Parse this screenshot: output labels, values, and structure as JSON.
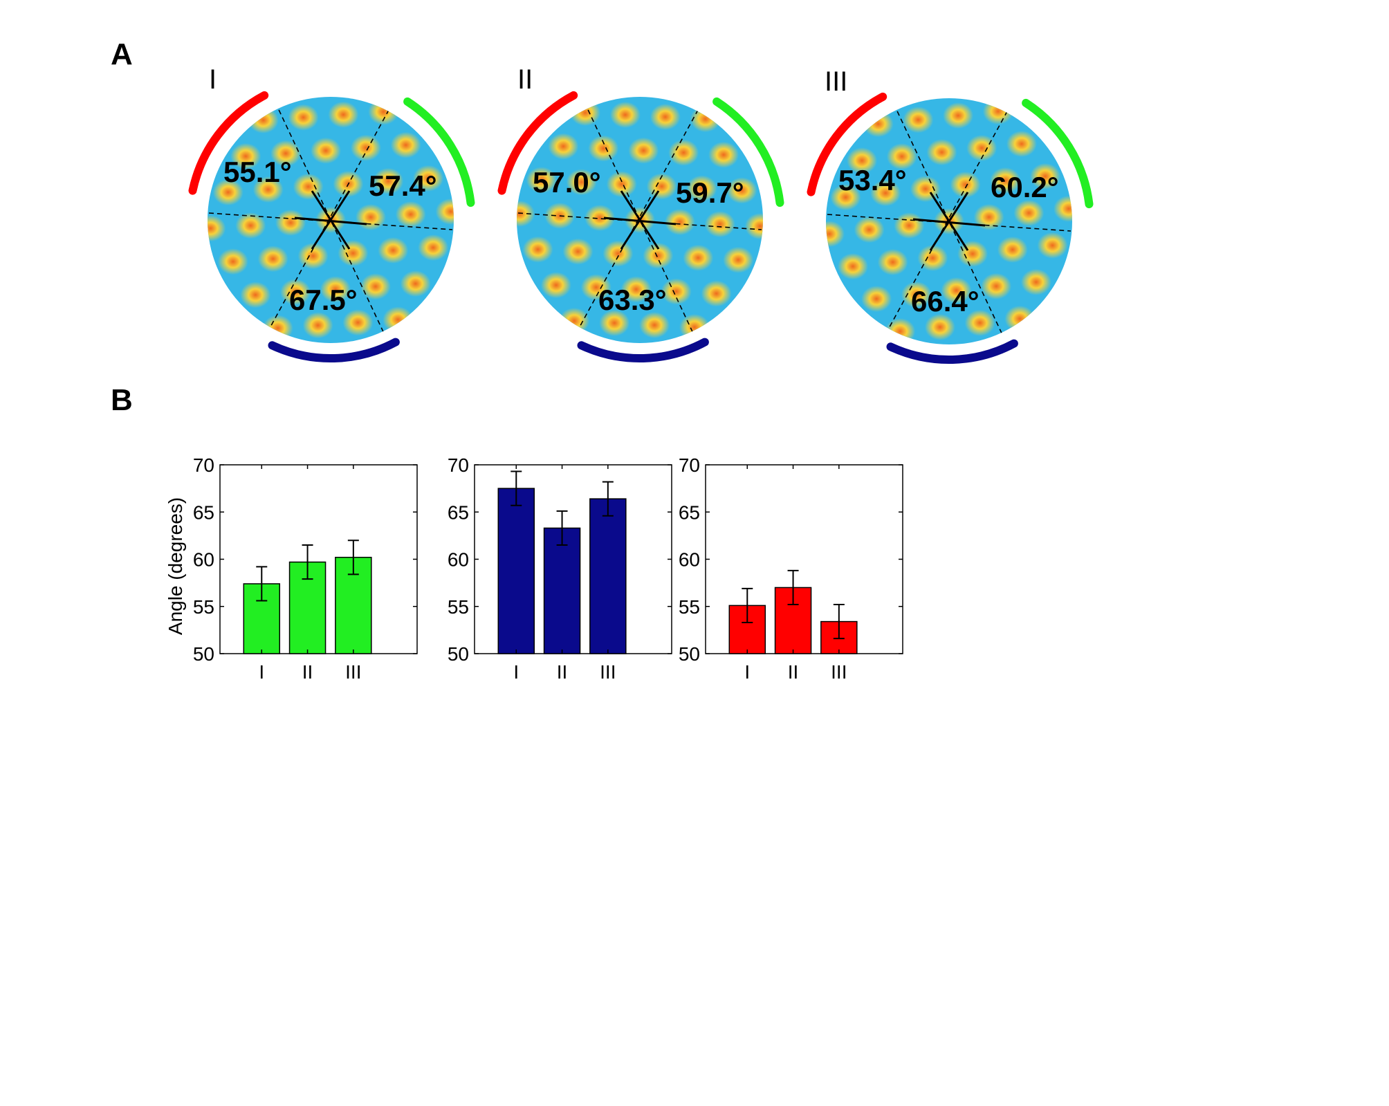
{
  "figure": {
    "panel_a_letter": "A",
    "panel_b_letter": "B"
  },
  "colors": {
    "green": "#22ee22",
    "blue": "#0a0a8c",
    "red": "#ff0000",
    "map_background": "#36b7e6",
    "map_spot": "#f5d63a",
    "map_spot_core": "#ee6a1e"
  },
  "maps": [
    {
      "label": "I",
      "angles": {
        "upper_left": "55.1°",
        "upper_right": "57.4°",
        "bottom": "67.5°"
      }
    },
    {
      "label": "II",
      "angles": {
        "upper_left": "57.0°",
        "upper_right": "59.7°",
        "bottom": "63.3°"
      }
    },
    {
      "label": "III",
      "angles": {
        "upper_left": "53.4°",
        "upper_right": "60.2°",
        "bottom": "66.4°"
      }
    }
  ],
  "chart_data": [
    {
      "type": "bar",
      "color": "green",
      "categories": [
        "I",
        "II",
        "III"
      ],
      "values": [
        57.4,
        59.7,
        60.2
      ],
      "error": [
        1.8,
        1.8,
        1.8
      ],
      "ylabel": "Angle (degrees)",
      "ylim": [
        50,
        70
      ],
      "yticks": [
        "50",
        "55",
        "60",
        "65",
        "70"
      ]
    },
    {
      "type": "bar",
      "color": "blue",
      "categories": [
        "I",
        "II",
        "III"
      ],
      "values": [
        67.5,
        63.3,
        66.4
      ],
      "error": [
        1.8,
        1.8,
        1.8
      ],
      "ylabel": "",
      "ylim": [
        50,
        70
      ],
      "yticks": [
        "50",
        "55",
        "60",
        "65",
        "70"
      ]
    },
    {
      "type": "bar",
      "color": "red",
      "categories": [
        "I",
        "II",
        "III"
      ],
      "values": [
        55.1,
        57.0,
        53.4
      ],
      "error": [
        1.8,
        1.8,
        1.8
      ],
      "ylabel": "",
      "ylim": [
        50,
        70
      ],
      "yticks": [
        "50",
        "55",
        "60",
        "65",
        "70"
      ]
    }
  ]
}
